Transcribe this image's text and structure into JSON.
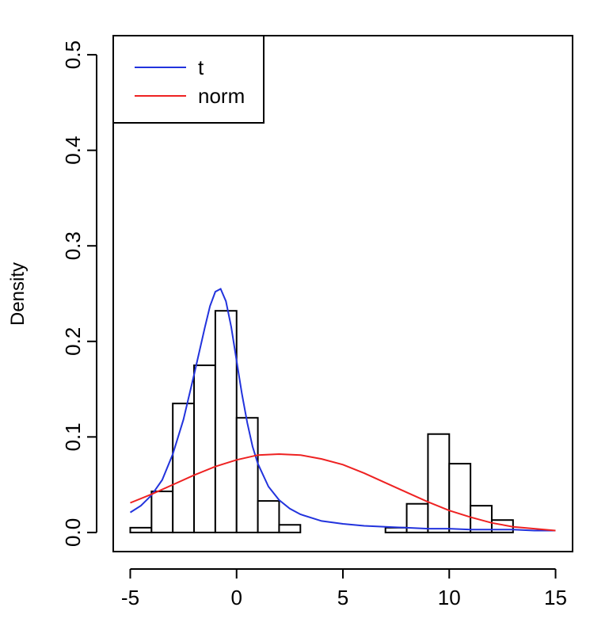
{
  "chart_data": {
    "type": "histogram",
    "xlabel": "",
    "ylabel": "Density",
    "xlim": [
      -5.8,
      15.8
    ],
    "ylim": [
      -0.02,
      0.52
    ],
    "x_ticks": [
      -5,
      0,
      5,
      10,
      15
    ],
    "x_tick_labels": [
      "-5",
      "0",
      "5",
      "10",
      "15"
    ],
    "y_ticks": [
      0.0,
      0.1,
      0.2,
      0.3,
      0.4,
      0.5
    ],
    "y_tick_labels": [
      "0.0",
      "0.1",
      "0.2",
      "0.3",
      "0.4",
      "0.5"
    ],
    "grid": false,
    "legend_position": "top-left",
    "histogram": {
      "bin_width": 1,
      "bins": [
        {
          "x0": -5,
          "x1": -4,
          "density": 0.005
        },
        {
          "x0": -4,
          "x1": -3,
          "density": 0.043
        },
        {
          "x0": -3,
          "x1": -2,
          "density": 0.135
        },
        {
          "x0": -2,
          "x1": -1,
          "density": 0.175
        },
        {
          "x0": -1,
          "x1": 0,
          "density": 0.232
        },
        {
          "x0": 0,
          "x1": 1,
          "density": 0.12
        },
        {
          "x0": 1,
          "x1": 2,
          "density": 0.033
        },
        {
          "x0": 2,
          "x1": 3,
          "density": 0.008
        },
        {
          "x0": 7,
          "x1": 8,
          "density": 0.005
        },
        {
          "x0": 8,
          "x1": 9,
          "density": 0.03
        },
        {
          "x0": 9,
          "x1": 10,
          "density": 0.103
        },
        {
          "x0": 10,
          "x1": 11,
          "density": 0.072
        },
        {
          "x0": 11,
          "x1": 12,
          "density": 0.028
        },
        {
          "x0": 12,
          "x1": 13,
          "density": 0.013
        }
      ]
    },
    "series": [
      {
        "name": "t",
        "color": "#2233dd",
        "x": [
          -5,
          -4.5,
          -4,
          -3.5,
          -3,
          -2.5,
          -2,
          -1.5,
          -1.25,
          -1,
          -0.75,
          -0.5,
          -0.25,
          0,
          0.25,
          0.5,
          0.75,
          1,
          1.5,
          2,
          2.5,
          3,
          4,
          5,
          6,
          7,
          8,
          9,
          10,
          11,
          12,
          13,
          14,
          15
        ],
        "y": [
          0.021,
          0.028,
          0.039,
          0.055,
          0.082,
          0.118,
          0.165,
          0.214,
          0.237,
          0.252,
          0.255,
          0.242,
          0.215,
          0.18,
          0.145,
          0.115,
          0.09,
          0.072,
          0.048,
          0.034,
          0.025,
          0.019,
          0.012,
          0.009,
          0.007,
          0.006,
          0.005,
          0.004,
          0.004,
          0.003,
          0.003,
          0.003,
          0.002,
          0.002
        ]
      },
      {
        "name": "norm",
        "color": "#ee2222",
        "x": [
          -5,
          -4,
          -3,
          -2,
          -1,
          0,
          1,
          2,
          3,
          4,
          5,
          6,
          7,
          8,
          9,
          10,
          11,
          12,
          13,
          14,
          15
        ],
        "y": [
          0.031,
          0.04,
          0.05,
          0.06,
          0.069,
          0.076,
          0.081,
          0.082,
          0.081,
          0.077,
          0.071,
          0.062,
          0.052,
          0.042,
          0.032,
          0.023,
          0.016,
          0.01,
          0.006,
          0.004,
          0.002
        ]
      }
    ]
  }
}
